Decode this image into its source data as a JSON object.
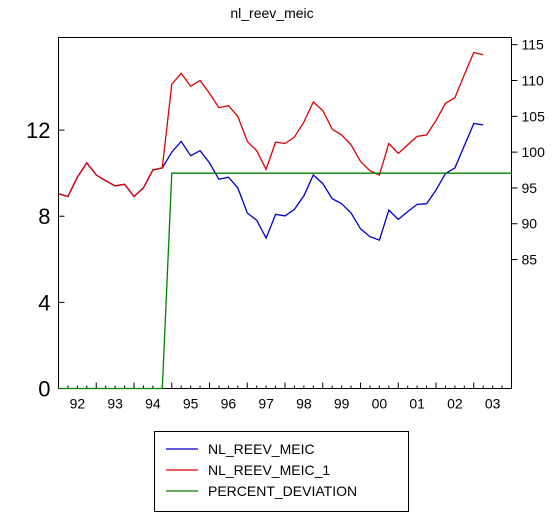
{
  "chart_data": {
    "type": "line",
    "title": "nl_reev_meic",
    "x_tick_labels": [
      "92",
      "93",
      "94",
      "95",
      "96",
      "97",
      "98",
      "99",
      "00",
      "01",
      "02",
      "03"
    ],
    "x_range": [
      1992.0,
      2004.0
    ],
    "left_axis": {
      "ticks": [
        0,
        4,
        8,
        12
      ],
      "range": [
        0,
        16.3
      ]
    },
    "right_axis": {
      "ticks": [
        85,
        90,
        95,
        100,
        105,
        110,
        115
      ],
      "range": [
        67,
        116
      ]
    },
    "grid": false,
    "legend_position": "bottom-center",
    "series": [
      {
        "name": "NL_REEV_MEIC",
        "axis": "right",
        "color": "#0000cc",
        "x": [
          1992.0,
          1992.25,
          1992.5,
          1992.75,
          1993.0,
          1993.25,
          1993.5,
          1993.75,
          1994.0,
          1994.25,
          1994.5,
          1994.75,
          1995.0,
          1995.25,
          1995.5,
          1995.75,
          1996.0,
          1996.25,
          1996.5,
          1996.75,
          1997.0,
          1997.25,
          1997.5,
          1997.75,
          1998.0,
          1998.25,
          1998.5,
          1998.75,
          1999.0,
          1999.25,
          1999.5,
          1999.75,
          2000.0,
          2000.25,
          2000.5,
          2000.75,
          2001.0,
          2001.25,
          2001.5,
          2001.75,
          2002.0,
          2002.25,
          2002.5,
          2002.75,
          2003.0,
          2003.25
        ],
        "values": [
          94.2,
          93.8,
          96.5,
          98.5,
          96.8,
          96.0,
          95.3,
          95.5,
          93.8,
          95.0,
          97.5,
          97.8,
          100.0,
          101.5,
          99.5,
          100.2,
          98.5,
          96.2,
          96.5,
          95.0,
          91.5,
          90.5,
          88.0,
          91.3,
          91.1,
          92.0,
          93.9,
          96.8,
          95.6,
          93.5,
          92.8,
          91.5,
          89.3,
          88.2,
          87.7,
          91.9,
          90.6,
          91.7,
          92.7,
          92.8,
          94.7,
          97.0,
          97.8,
          100.9,
          104.0,
          103.8
        ]
      },
      {
        "name": "NL_REEV_MEIC_1",
        "axis": "right",
        "color": "#dd0000",
        "x": [
          1992.0,
          1992.25,
          1992.5,
          1992.75,
          1993.0,
          1993.25,
          1993.5,
          1993.75,
          1994.0,
          1994.25,
          1994.5,
          1994.75,
          1995.0,
          1995.25,
          1995.5,
          1995.75,
          1996.0,
          1996.25,
          1996.5,
          1996.75,
          1997.0,
          1997.25,
          1997.5,
          1997.75,
          1998.0,
          1998.25,
          1998.5,
          1998.75,
          1999.0,
          1999.25,
          1999.5,
          1999.75,
          2000.0,
          2000.25,
          2000.5,
          2000.75,
          2001.0,
          2001.25,
          2001.5,
          2001.75,
          2002.0,
          2002.25,
          2002.5,
          2002.75,
          2003.0,
          2003.25
        ],
        "values": [
          94.2,
          93.8,
          96.5,
          98.5,
          96.8,
          96.0,
          95.3,
          95.5,
          93.8,
          95.0,
          97.5,
          97.8,
          109.5,
          111.0,
          109.2,
          110.0,
          108.2,
          106.2,
          106.5,
          105.0,
          101.5,
          100.2,
          97.6,
          101.4,
          101.2,
          102.1,
          104.2,
          107.0,
          105.8,
          103.2,
          102.4,
          101.0,
          98.7,
          97.4,
          96.8,
          101.2,
          99.8,
          101.0,
          102.2,
          102.4,
          104.4,
          106.8,
          107.6,
          110.8,
          113.9,
          113.6
        ]
      },
      {
        "name": "PERCENT_DEVIATION",
        "axis": "left",
        "color": "#008000",
        "x": [
          1992.0,
          1994.75,
          1995.0,
          2004.0
        ],
        "values": [
          0,
          0,
          10.0,
          10.0
        ]
      }
    ]
  }
}
